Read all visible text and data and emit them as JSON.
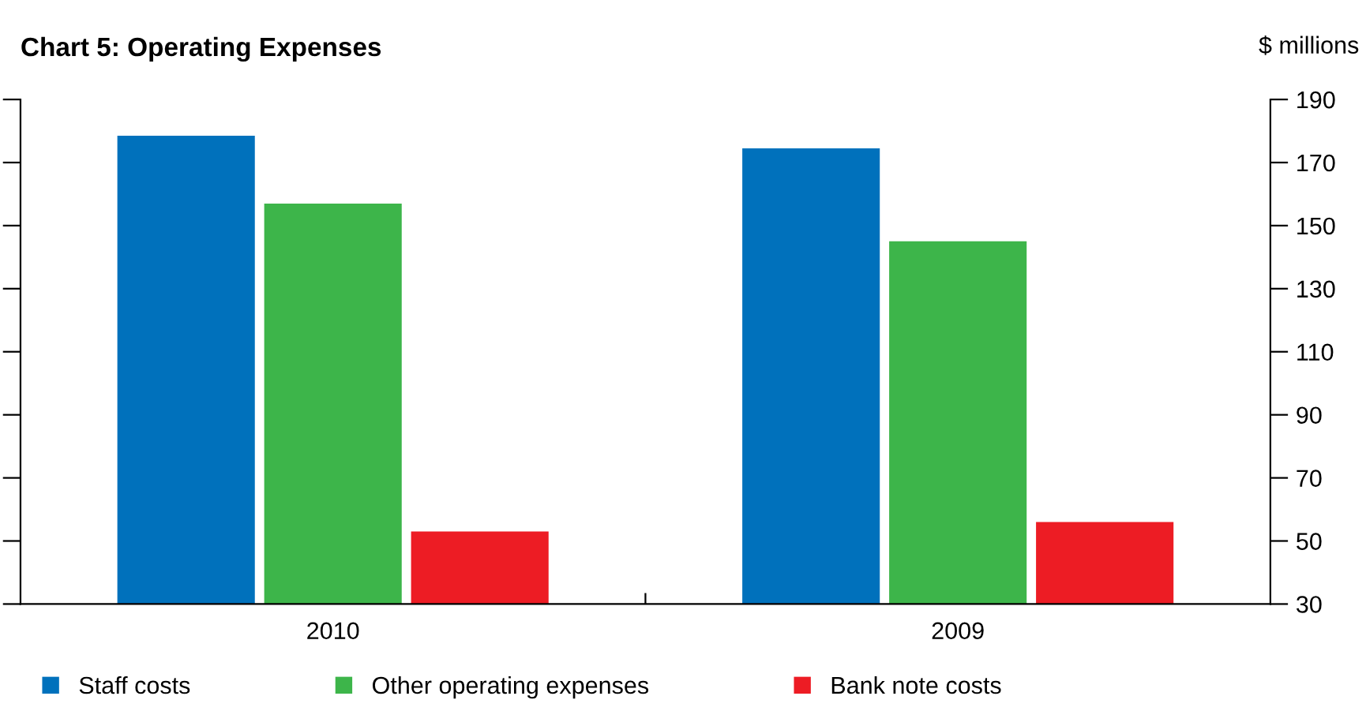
{
  "chart_data": {
    "type": "bar",
    "title": "Chart 5: Operating Expenses",
    "ylabel": "$ millions",
    "categories": [
      "2010",
      "2009"
    ],
    "series": [
      {
        "name": "Staff costs",
        "color": "#0071bc",
        "values": [
          178.5,
          174.5
        ]
      },
      {
        "name": "Other operating expenses",
        "color": "#3db54a",
        "values": [
          157,
          145
        ]
      },
      {
        "name": "Bank note costs",
        "color": "#ed1c24",
        "values": [
          53,
          56
        ]
      }
    ],
    "ylim": [
      30,
      190
    ],
    "yticks": [
      30,
      50,
      70,
      90,
      110,
      130,
      150,
      170,
      190
    ],
    "grid": false,
    "legend": "bottom"
  }
}
